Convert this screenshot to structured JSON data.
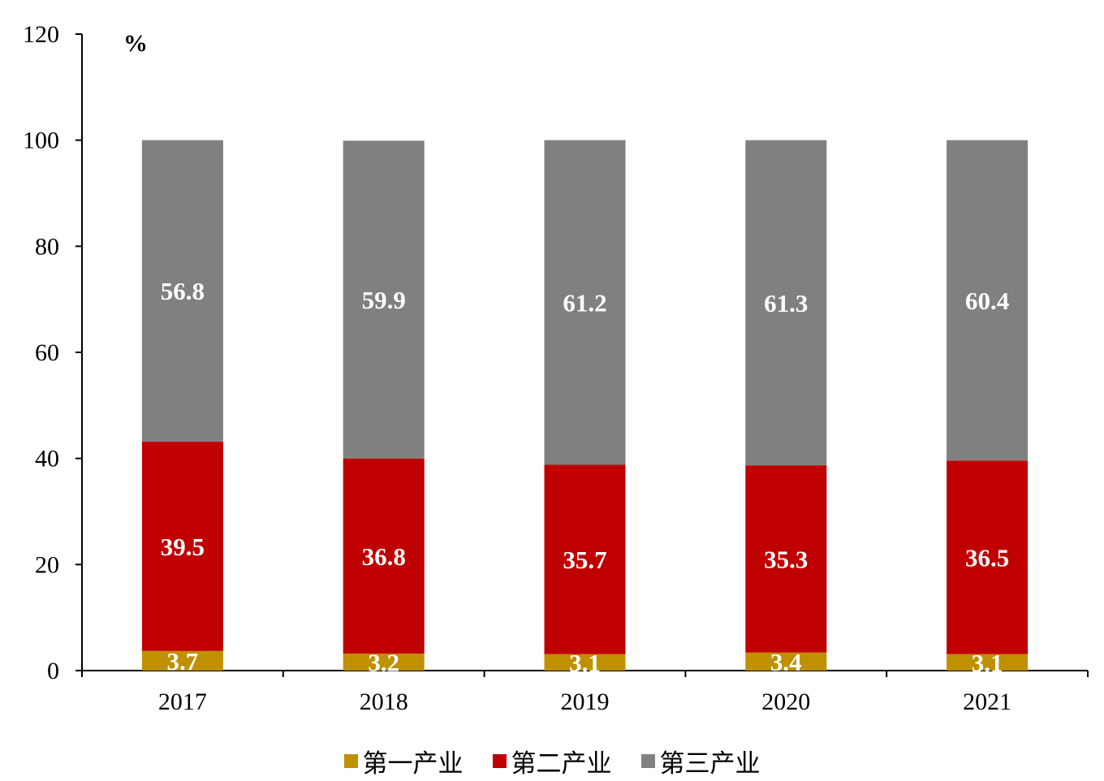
{
  "chart_data": {
    "type": "bar",
    "stacked": true,
    "unit": "%",
    "categories": [
      "2017",
      "2018",
      "2019",
      "2020",
      "2021"
    ],
    "series": [
      {
        "name": "第一产业",
        "color": "#BF9000",
        "values": [
          3.7,
          3.2,
          3.1,
          3.4,
          3.1
        ]
      },
      {
        "name": "第二产业",
        "color": "#C00000",
        "values": [
          39.5,
          36.8,
          35.7,
          35.3,
          36.5
        ]
      },
      {
        "name": "第三产业",
        "color": "#808080",
        "values": [
          56.8,
          59.9,
          61.2,
          61.3,
          60.4
        ]
      }
    ],
    "ylim": [
      0,
      120
    ],
    "yticks": [
      "0",
      "20",
      "40",
      "60",
      "80",
      "100",
      "120"
    ],
    "grid": false,
    "legend_position": "bottom"
  }
}
